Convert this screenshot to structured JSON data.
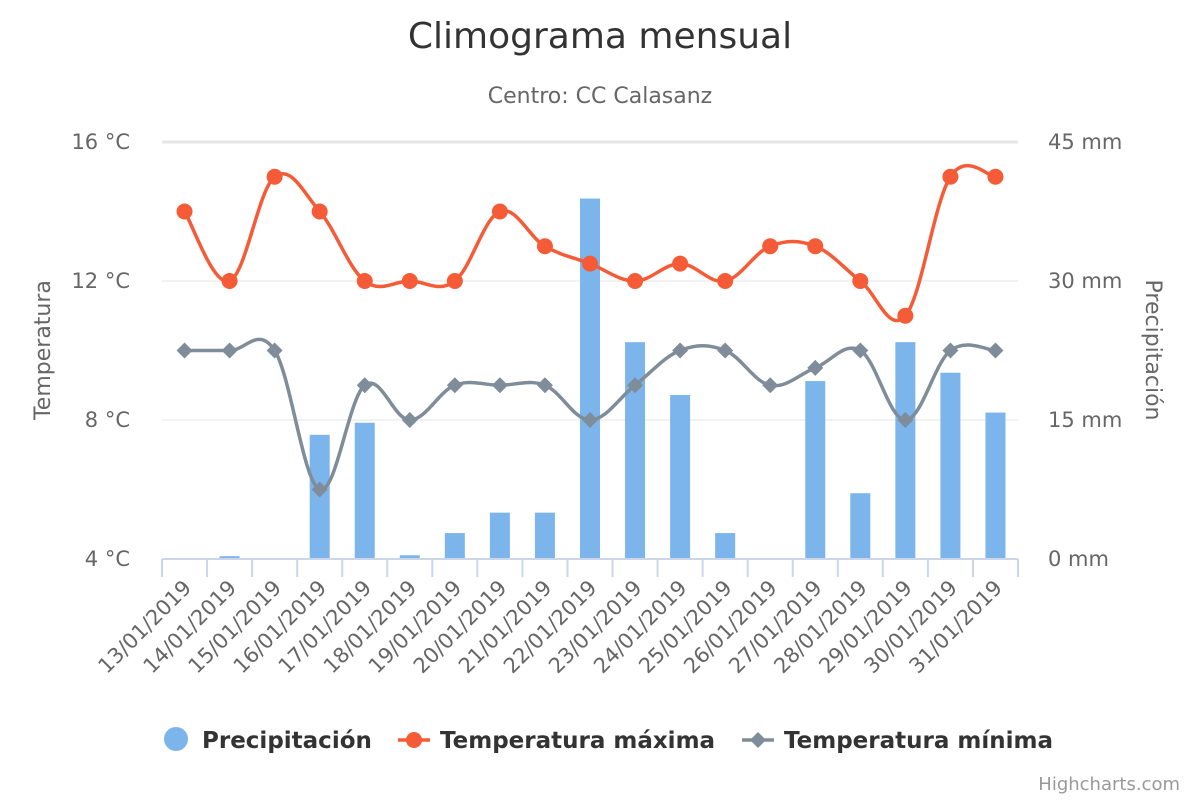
{
  "chart_data": {
    "type": "bar+line",
    "title": "Climograma mensual",
    "subtitle": "Centro: CC Calasanz",
    "categories": [
      "13/01/2019",
      "14/01/2019",
      "15/01/2019",
      "16/01/2019",
      "17/01/2019",
      "18/01/2019",
      "19/01/2019",
      "20/01/2019",
      "21/01/2019",
      "22/01/2019",
      "23/01/2019",
      "24/01/2019",
      "25/01/2019",
      "26/01/2019",
      "27/01/2019",
      "28/01/2019",
      "29/01/2019",
      "30/01/2019",
      "31/01/2019"
    ],
    "y_left": {
      "title": "Temperatura",
      "min": 4,
      "max": 16,
      "ticks": [
        4,
        8,
        12,
        16
      ],
      "tick_labels": [
        "4 °C",
        "8 °C",
        "12 °C",
        "16 °C"
      ]
    },
    "y_right": {
      "title": "Precipitación",
      "min": 0,
      "max": 45,
      "ticks": [
        0,
        15,
        30,
        45
      ],
      "tick_labels": [
        "0 mm",
        "15 mm",
        "30 mm",
        "45 mm"
      ]
    },
    "series": [
      {
        "name": "Precipitación",
        "type": "bar",
        "axis": "right",
        "color": "#7cb5ec",
        "values": [
          0,
          0.3,
          0,
          13.4,
          14.7,
          0.4,
          2.8,
          5,
          5,
          38.9,
          23.4,
          17.7,
          2.8,
          0,
          19.2,
          7.1,
          23.4,
          20.1,
          15.8
        ]
      },
      {
        "name": "Temperatura máxima",
        "type": "line",
        "axis": "left",
        "color": "#f45b36",
        "marker": "circle",
        "values": [
          14,
          12,
          15,
          14,
          12,
          12,
          12,
          14,
          13,
          12.5,
          12,
          12.5,
          12,
          13,
          13,
          12,
          11,
          15,
          15
        ]
      },
      {
        "name": "Temperatura mínima",
        "type": "line",
        "axis": "left",
        "color": "#7f8c99",
        "marker": "diamond",
        "values": [
          10,
          10,
          10,
          6,
          9,
          8,
          9,
          9,
          9,
          8,
          9,
          10,
          10,
          9,
          9.5,
          10,
          8,
          10,
          10
        ]
      }
    ],
    "grid": true,
    "legend": "bottom-center",
    "credits": "Highcharts.com"
  }
}
